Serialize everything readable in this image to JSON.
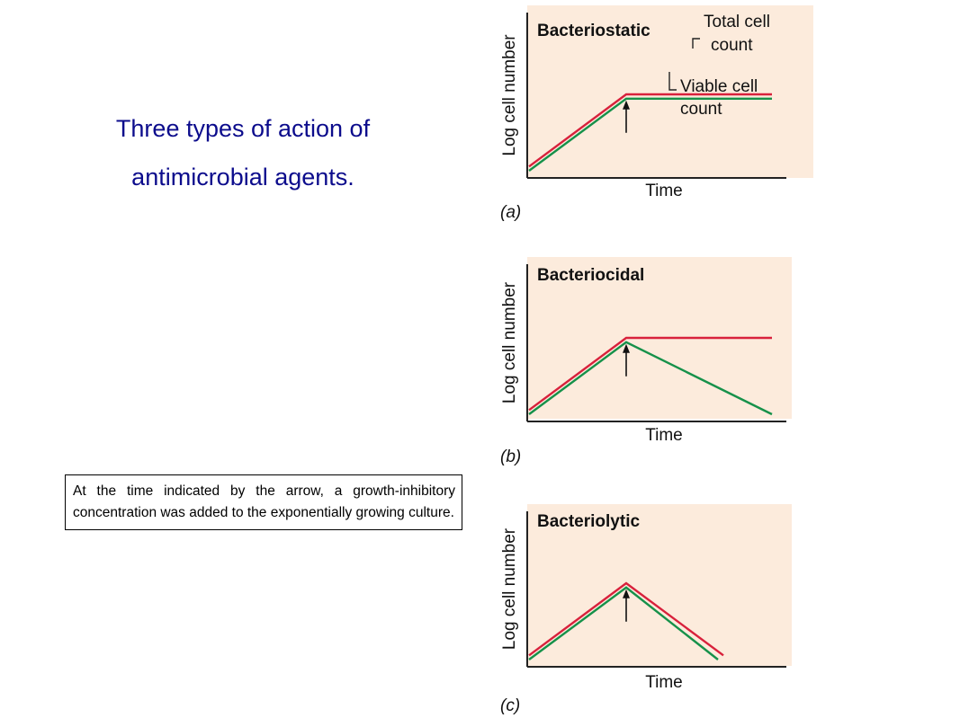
{
  "slide": {
    "title_line1": "Three types of action of",
    "title_line2": "antimicrobial agents.",
    "note": "At the time indicated by the arrow, a growth-inhibitory concentration was added to the exponentially growing culture."
  },
  "colors": {
    "panel_bg": "#fcebdc",
    "total_line": "#d8213c",
    "viable_line": "#16914a",
    "title_text": "#0c0c8c"
  },
  "chart_data": [
    {
      "type": "line",
      "panel_label": "(a)",
      "title": "Bacteriostatic",
      "xlabel": "Time",
      "ylabel": "Log cell number",
      "xlim": [
        0,
        10
      ],
      "ylim": [
        0,
        10
      ],
      "annotations": {
        "total": "Total cell count",
        "total_line1": "Total cell",
        "total_line2": "count",
        "viable_line1": "Viable cell",
        "viable_line2": "count"
      },
      "arrow_x": 3.6,
      "series": [
        {
          "name": "Total cell count",
          "color": "#d8213c",
          "x": [
            0,
            3.6,
            9.0
          ],
          "y": [
            0.4,
            7.2,
            7.2
          ]
        },
        {
          "name": "Viable cell count",
          "color": "#16914a",
          "x": [
            0,
            3.6,
            9.0
          ],
          "y": [
            0.0,
            6.8,
            6.8
          ]
        }
      ]
    },
    {
      "type": "line",
      "panel_label": "(b)",
      "title": "Bacteriocidal",
      "xlabel": "Time",
      "ylabel": "Log cell number",
      "xlim": [
        0,
        10
      ],
      "ylim": [
        0,
        10
      ],
      "arrow_x": 3.6,
      "series": [
        {
          "color": "#d8213c",
          "x": [
            0,
            3.6,
            9.0
          ],
          "y": [
            0.4,
            7.2,
            7.2
          ]
        },
        {
          "color": "#16914a",
          "x": [
            0,
            3.6,
            9.0
          ],
          "y": [
            0.0,
            6.8,
            0.0
          ]
        }
      ]
    },
    {
      "type": "line",
      "panel_label": "(c)",
      "title": "Bacteriolytic",
      "xlabel": "Time",
      "ylabel": "Log cell number",
      "xlim": [
        0,
        10
      ],
      "ylim": [
        0,
        10
      ],
      "arrow_x": 3.6,
      "series": [
        {
          "color": "#d8213c",
          "x": [
            0,
            3.6,
            7.2
          ],
          "y": [
            0.4,
            7.2,
            0.4
          ]
        },
        {
          "color": "#16914a",
          "x": [
            0,
            3.6,
            7.0
          ],
          "y": [
            0.0,
            6.8,
            0.0
          ]
        }
      ]
    }
  ]
}
